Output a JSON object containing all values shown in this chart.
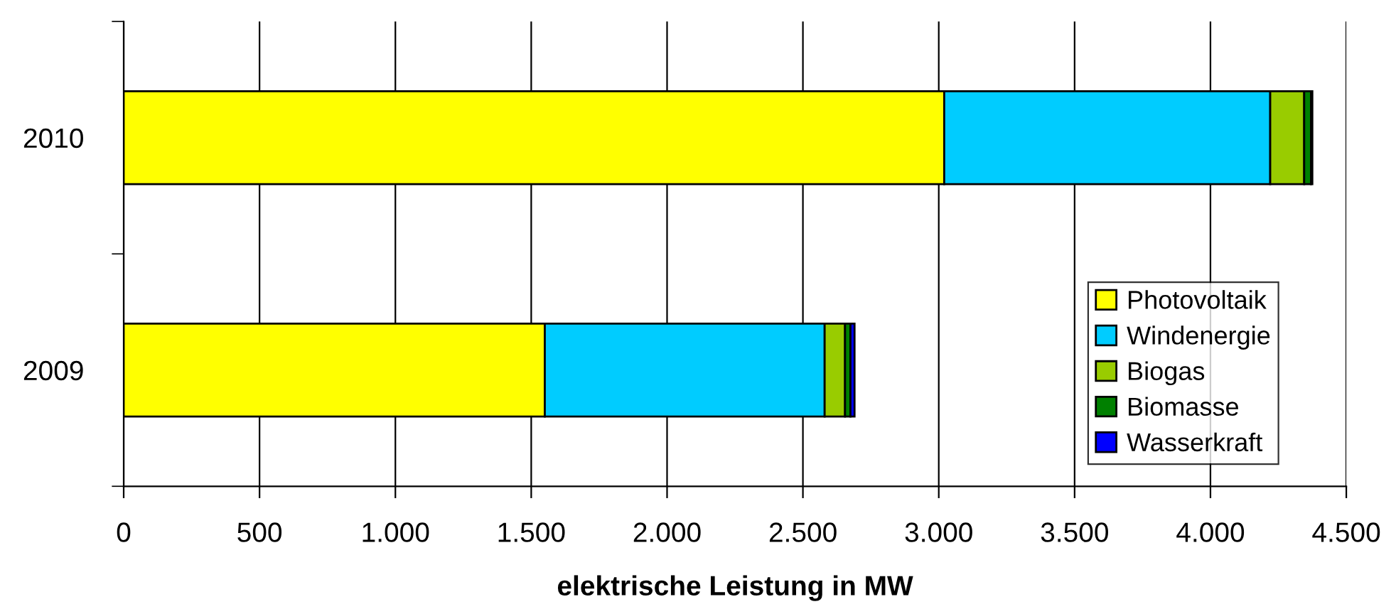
{
  "chart_data": {
    "type": "bar",
    "orientation": "horizontal",
    "stacked": true,
    "xlabel": "elektrische Leistung in MW",
    "categories": [
      "2010",
      "2009"
    ],
    "series": [
      {
        "name": "Photovoltaik",
        "color": "#ffff00",
        "values": [
          3020,
          1550
        ]
      },
      {
        "name": "Windenergie",
        "color": "#00ccff",
        "values": [
          1200,
          1030
        ]
      },
      {
        "name": "Biogas",
        "color": "#99cc00",
        "values": [
          125,
          75
        ]
      },
      {
        "name": "Biomasse",
        "color": "#008000",
        "values": [
          25,
          20
        ]
      },
      {
        "name": "Wasserkraft",
        "color": "#0000ff",
        "values": [
          5,
          15
        ]
      }
    ],
    "xlim": [
      0,
      4500
    ],
    "xticks": [
      0,
      {
        "value": 500,
        "label": "500"
      },
      {
        "value": 1000,
        "label": "1.000"
      },
      {
        "value": 1500,
        "label": "1.500"
      },
      {
        "value": 2000,
        "label": "2.000"
      },
      {
        "value": 2500,
        "label": "2.500"
      },
      {
        "value": 3000,
        "label": "3.000"
      },
      {
        "value": 3500,
        "label": "3.500"
      },
      {
        "value": 4000,
        "label": "4.000"
      },
      {
        "value": 4500,
        "label": "4.500"
      }
    ],
    "grid": "x",
    "legend": "bottom right"
  }
}
